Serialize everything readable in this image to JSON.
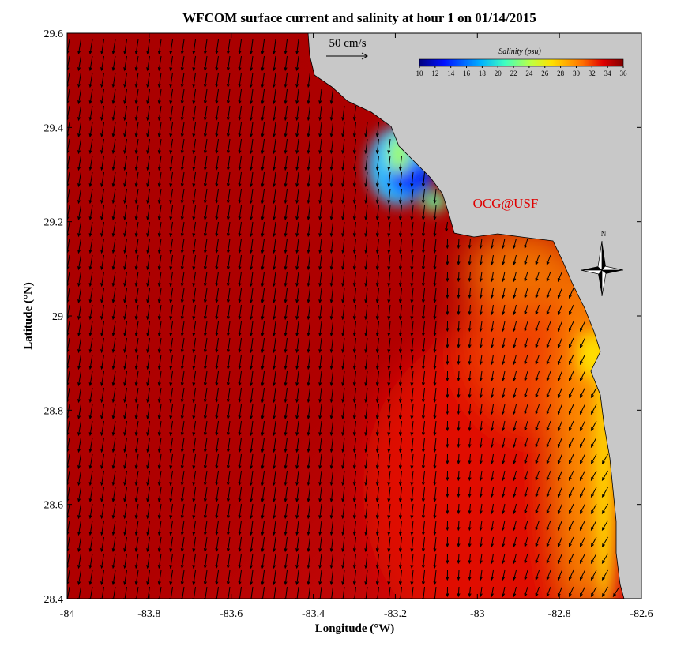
{
  "map": {
    "title": "WFCOM surface current and salinity at hour 1 on 01/14/2015",
    "xlabel": "Longitude (°W)",
    "ylabel": "Latitude (°N)",
    "xlim": [
      -84,
      -82.6
    ],
    "ylim": [
      28.4,
      29.6
    ],
    "xticks": [
      -84,
      -83.8,
      -83.6,
      -83.4,
      -83.2,
      -83,
      -82.8,
      -82.6
    ],
    "yticks": [
      28.4,
      28.6,
      28.8,
      29,
      29.2,
      29.4,
      29.6
    ],
    "scale_label": "50 cm/s",
    "credit": "OCG@USF",
    "north": "N",
    "colorbar": {
      "label": "Salinity (psu)",
      "lim": [
        10,
        36
      ],
      "ticks": [
        10,
        12,
        14,
        16,
        18,
        20,
        22,
        24,
        26,
        28,
        30,
        32,
        34,
        36
      ]
    }
  }
}
